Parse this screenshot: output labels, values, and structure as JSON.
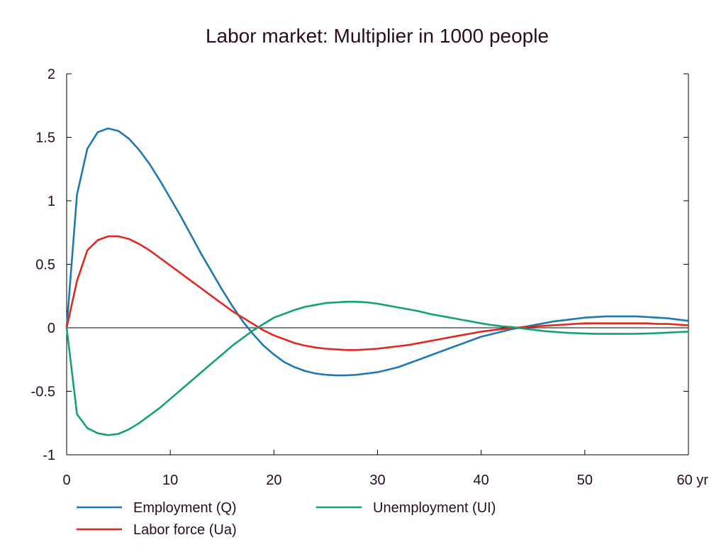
{
  "chart_data": {
    "type": "line",
    "title": "Labor market: Multiplier in 1000 people",
    "xlabel": "",
    "ylabel": "",
    "xlim": [
      0,
      60
    ],
    "ylim": [
      -1,
      2
    ],
    "x_ticks": [
      {
        "value": 0,
        "label": "0"
      },
      {
        "value": 10,
        "label": "10"
      },
      {
        "value": 20,
        "label": "20"
      },
      {
        "value": 30,
        "label": "30"
      },
      {
        "value": 40,
        "label": "40"
      },
      {
        "value": 50,
        "label": "50"
      },
      {
        "value": 60,
        "label": "60 yr"
      }
    ],
    "y_ticks": [
      {
        "value": 2,
        "label": "2"
      },
      {
        "value": 1.5,
        "label": "1.5"
      },
      {
        "value": 1,
        "label": "1"
      },
      {
        "value": 0.5,
        "label": "0.5"
      },
      {
        "value": 0,
        "label": "0"
      },
      {
        "value": -0.5,
        "label": "-0.5"
      },
      {
        "value": -1,
        "label": "-1"
      }
    ],
    "grid": false,
    "zero_line": true,
    "legend_position": "bottom",
    "x": [
      0,
      1,
      2,
      3,
      4,
      5,
      6,
      7,
      8,
      9,
      10,
      11,
      12,
      13,
      14,
      15,
      16,
      17,
      18,
      19,
      20,
      21,
      22,
      23,
      24,
      25,
      26,
      27,
      28,
      29,
      30,
      31,
      32,
      33,
      34,
      35,
      36,
      37,
      38,
      39,
      40,
      41,
      42,
      43,
      44,
      45,
      46,
      47,
      48,
      49,
      50,
      51,
      52,
      53,
      54,
      55,
      56,
      57,
      58,
      59,
      60
    ],
    "series": [
      {
        "name": "Employment (Q)",
        "color": "#1f77b4",
        "values": [
          0,
          1.05,
          1.41,
          1.54,
          1.57,
          1.55,
          1.49,
          1.4,
          1.29,
          1.16,
          1.02,
          0.88,
          0.73,
          0.58,
          0.44,
          0.3,
          0.17,
          0.05,
          -0.05,
          -0.14,
          -0.21,
          -0.27,
          -0.31,
          -0.34,
          -0.36,
          -0.37,
          -0.375,
          -0.375,
          -0.37,
          -0.36,
          -0.35,
          -0.33,
          -0.31,
          -0.28,
          -0.25,
          -0.22,
          -0.19,
          -0.16,
          -0.13,
          -0.1,
          -0.07,
          -0.05,
          -0.03,
          -0.01,
          0.005,
          0.02,
          0.035,
          0.05,
          0.06,
          0.07,
          0.08,
          0.085,
          0.09,
          0.09,
          0.09,
          0.09,
          0.085,
          0.08,
          0.075,
          0.065,
          0.055
        ]
      },
      {
        "name": "Labor force (Ua)",
        "color": "#e0281e",
        "values": [
          0,
          0.37,
          0.61,
          0.69,
          0.72,
          0.72,
          0.7,
          0.66,
          0.61,
          0.55,
          0.49,
          0.43,
          0.37,
          0.31,
          0.25,
          0.19,
          0.13,
          0.08,
          0.03,
          -0.02,
          -0.06,
          -0.09,
          -0.12,
          -0.14,
          -0.155,
          -0.165,
          -0.17,
          -0.175,
          -0.175,
          -0.17,
          -0.165,
          -0.155,
          -0.145,
          -0.135,
          -0.12,
          -0.105,
          -0.09,
          -0.075,
          -0.06,
          -0.045,
          -0.03,
          -0.02,
          -0.01,
          -0.003,
          0.005,
          0.01,
          0.015,
          0.02,
          0.025,
          0.03,
          0.035,
          0.035,
          0.035,
          0.035,
          0.035,
          0.035,
          0.035,
          0.03,
          0.03,
          0.025,
          0.02
        ]
      },
      {
        "name": "Unemployment (UI)",
        "color": "#159f76",
        "values": [
          0,
          -0.68,
          -0.79,
          -0.83,
          -0.845,
          -0.835,
          -0.8,
          -0.75,
          -0.69,
          -0.63,
          -0.56,
          -0.49,
          -0.42,
          -0.35,
          -0.28,
          -0.21,
          -0.14,
          -0.08,
          -0.02,
          0.03,
          0.08,
          0.11,
          0.14,
          0.165,
          0.18,
          0.195,
          0.2,
          0.205,
          0.205,
          0.2,
          0.19,
          0.175,
          0.16,
          0.145,
          0.13,
          0.11,
          0.095,
          0.08,
          0.065,
          0.05,
          0.035,
          0.022,
          0.012,
          0.005,
          -0.005,
          -0.015,
          -0.025,
          -0.032,
          -0.038,
          -0.042,
          -0.045,
          -0.047,
          -0.048,
          -0.048,
          -0.048,
          -0.047,
          -0.045,
          -0.042,
          -0.038,
          -0.034,
          -0.03
        ]
      }
    ]
  }
}
